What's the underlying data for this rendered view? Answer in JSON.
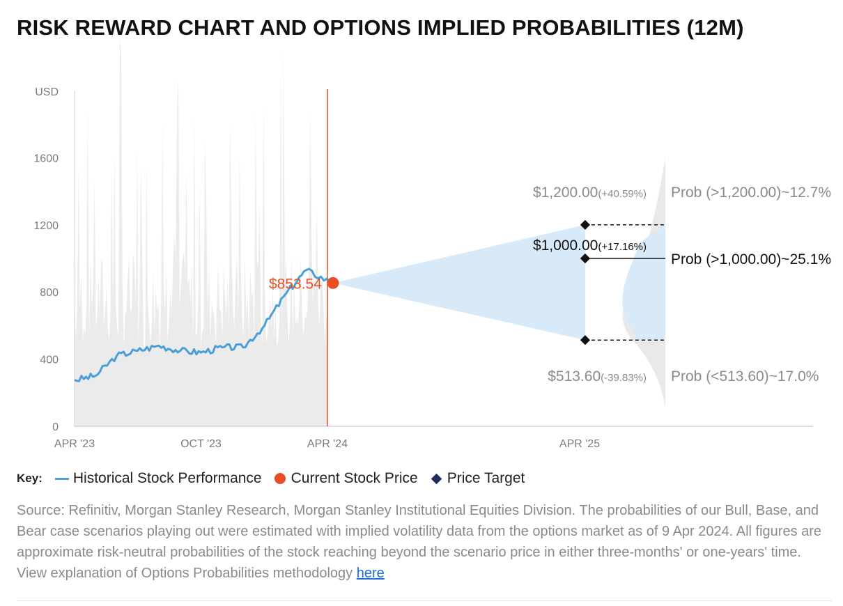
{
  "title": "RISK REWARD CHART AND OPTIONS IMPLIED PROBABILITIES (12M)",
  "chart_data": {
    "type": "line",
    "ylabel": "USD",
    "ylim": [
      0,
      2000
    ],
    "y_ticks": [
      0,
      400,
      800,
      1200,
      1600
    ],
    "x_ticks": [
      "APR '23",
      "OCT '23",
      "APR '24",
      "APR '25"
    ],
    "series": [
      {
        "name": "Historical Stock Performance",
        "x": [
          "2023-04",
          "2023-05",
          "2023-06",
          "2023-07",
          "2023-08",
          "2023-09",
          "2023-10",
          "2023-11",
          "2023-12",
          "2024-01",
          "2024-02",
          "2024-03",
          "2024-04"
        ],
        "values": [
          275,
          300,
          420,
          450,
          480,
          450,
          440,
          470,
          470,
          600,
          790,
          930,
          853.54
        ]
      }
    ],
    "current_price": {
      "label": "$853.54",
      "value": 853.54,
      "date": "2024-04-09"
    },
    "price_targets": [
      {
        "case": "bull",
        "value": 1200.0,
        "label": "$1,200.00",
        "change": "(+40.59%)",
        "prob_label": "Prob (>1,200.00)~12.7%"
      },
      {
        "case": "base",
        "value": 1000.0,
        "label": "$1,000.00",
        "change": "(+17.16%)",
        "prob_label": "Prob (>1,000.00)~25.1%"
      },
      {
        "case": "bear",
        "value": 513.6,
        "label": "$513.60",
        "change": "(-39.83%)",
        "prob_label": "Prob (<513.60)~17.0%"
      }
    ],
    "colors": {
      "history": "#4a9fd6",
      "current": "#e84e23",
      "target": "#111111",
      "cone": "#d8eaf8",
      "volume": "#ebebeb",
      "axis": "#c8d6e5"
    }
  },
  "key": {
    "title": "Key:",
    "items": [
      {
        "label": "Historical Stock Performance"
      },
      {
        "label": "Current Stock Price"
      },
      {
        "label": "Price Target"
      }
    ]
  },
  "source": {
    "text": "Source: Refinitiv, Morgan Stanley Research, Morgan Stanley Institutional Equities Division. The probabilities of our Bull, Base, and Bear case scenarios playing out were estimated with implied volatility data from the options market as of 9 Apr 2024. All figures are approximate risk-neutral probabilities of the stock reaching beyond the scenario price in either three-months' or one-years' time. View explanation of Options Probabilities methodology",
    "link": "here"
  }
}
